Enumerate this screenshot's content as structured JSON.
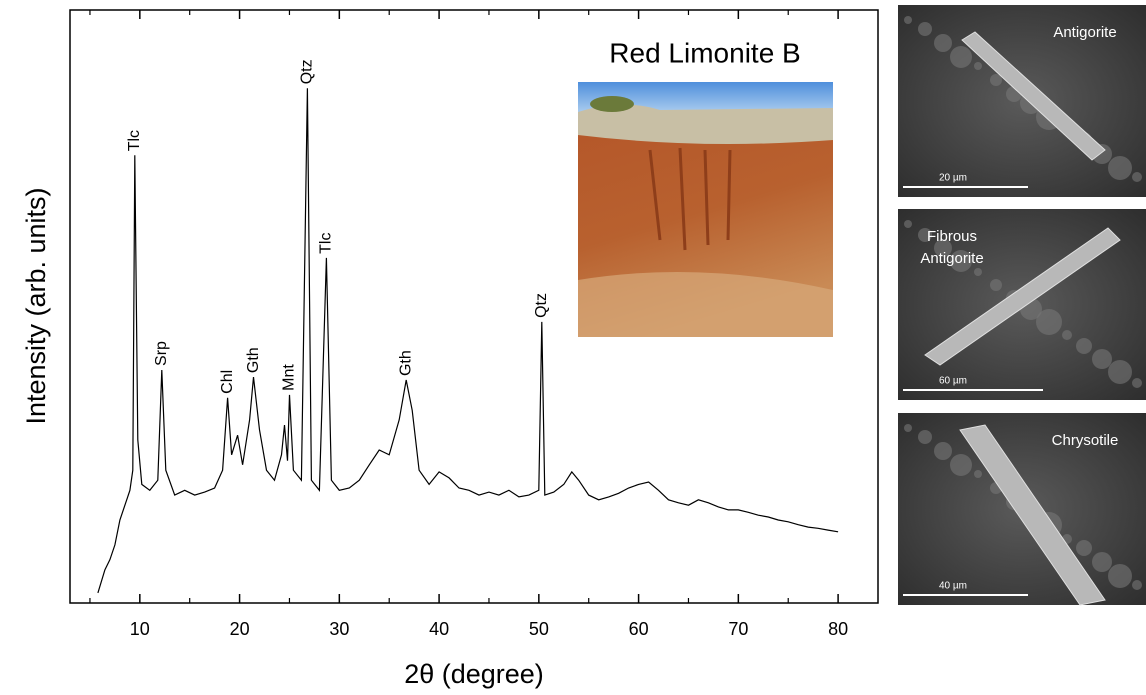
{
  "chart_data": {
    "type": "line",
    "xlabel": "2θ (degree)",
    "ylabel": "Intensity (arb. units)",
    "x": [
      5.8,
      6.5,
      7,
      7.5,
      8,
      8.5,
      9,
      9.3,
      9.5,
      9.8,
      10.2,
      11,
      11.8,
      12.2,
      12.6,
      13.5,
      14.5,
      15.5,
      16.5,
      17.5,
      18.3,
      18.8,
      19.2,
      19.8,
      20.3,
      21,
      21.4,
      22,
      22.7,
      23.5,
      24.2,
      24.5,
      24.8,
      25,
      25.4,
      26.2,
      26.8,
      27.2,
      28,
      28.7,
      29.2,
      30,
      31,
      32,
      33,
      34,
      35,
      36,
      36.7,
      37.3,
      38,
      39,
      40,
      41,
      42,
      43,
      44,
      45,
      46,
      47,
      48,
      49,
      50,
      50.3,
      50.6,
      51.5,
      52.5,
      53.3,
      54,
      55,
      56,
      57,
      58,
      59,
      60,
      61,
      62,
      63,
      64,
      65,
      66,
      67,
      68,
      69,
      70,
      71,
      72,
      73,
      74,
      75,
      76,
      77,
      78,
      79,
      80
    ],
    "values": [
      1.7,
      5.6,
      7.3,
      9.8,
      14,
      16.5,
      19,
      22.4,
      75.5,
      27.5,
      20,
      19,
      20.7,
      39.3,
      22.4,
      18.2,
      19,
      18.2,
      18.7,
      19.4,
      22.4,
      34.6,
      25,
      28.3,
      23.3,
      30.9,
      38.1,
      29.2,
      22.4,
      20.7,
      25,
      30,
      24,
      35.1,
      22.4,
      20.7,
      86.8,
      20.7,
      19,
      58.2,
      20.7,
      19,
      19.4,
      20.7,
      23.3,
      25.8,
      25,
      30.9,
      37.6,
      32.5,
      22.4,
      20,
      22.1,
      21.1,
      19.4,
      19,
      18.2,
      18.7,
      18.2,
      19,
      17.9,
      18.2,
      19,
      47.4,
      18.2,
      18.7,
      20,
      22.1,
      20.7,
      18.2,
      17.4,
      17.9,
      18.5,
      19.4,
      20,
      20.4,
      19,
      17.4,
      16.9,
      16.5,
      17.4,
      16.9,
      16.2,
      15.7,
      15.7,
      15.3,
      14.8,
      14.5,
      14,
      13.7,
      13.2,
      12.8,
      12.6,
      12.3,
      12
    ],
    "color": "#000000",
    "xlim": [
      3,
      84
    ],
    "xticks": [
      10,
      20,
      30,
      40,
      50,
      60,
      70,
      80
    ],
    "xminorticks": [
      5,
      15,
      25,
      35,
      45,
      55,
      65,
      75
    ],
    "ylim": [
      0,
      100
    ],
    "annotations": [
      {
        "text": "Tlc",
        "x": 9.5,
        "y": 75.5
      },
      {
        "text": "Srp",
        "x": 12.2,
        "y": 39.3
      },
      {
        "text": "Chl",
        "x": 18.8,
        "y": 34.6
      },
      {
        "text": "Gth",
        "x": 21.4,
        "y": 38.1
      },
      {
        "text": "Mnt",
        "x": 25,
        "y": 35.1
      },
      {
        "text": "Qtz",
        "x": 26.8,
        "y": 86.8
      },
      {
        "text": "Tlc",
        "x": 28.7,
        "y": 58.2
      },
      {
        "text": "Gth",
        "x": 36.7,
        "y": 37.6
      },
      {
        "text": "Qtz",
        "x": 50.3,
        "y": 47.4
      }
    ]
  },
  "photo": {
    "title": "Red Limonite B"
  },
  "sem_images": [
    {
      "label": [
        "Antigorite"
      ],
      "scale": "20 µm"
    },
    {
      "label": [
        "Fibrous",
        "Antigorite"
      ],
      "scale": "60 µm"
    },
    {
      "label": [
        "Chrysotile"
      ],
      "scale": "40 µm"
    }
  ]
}
